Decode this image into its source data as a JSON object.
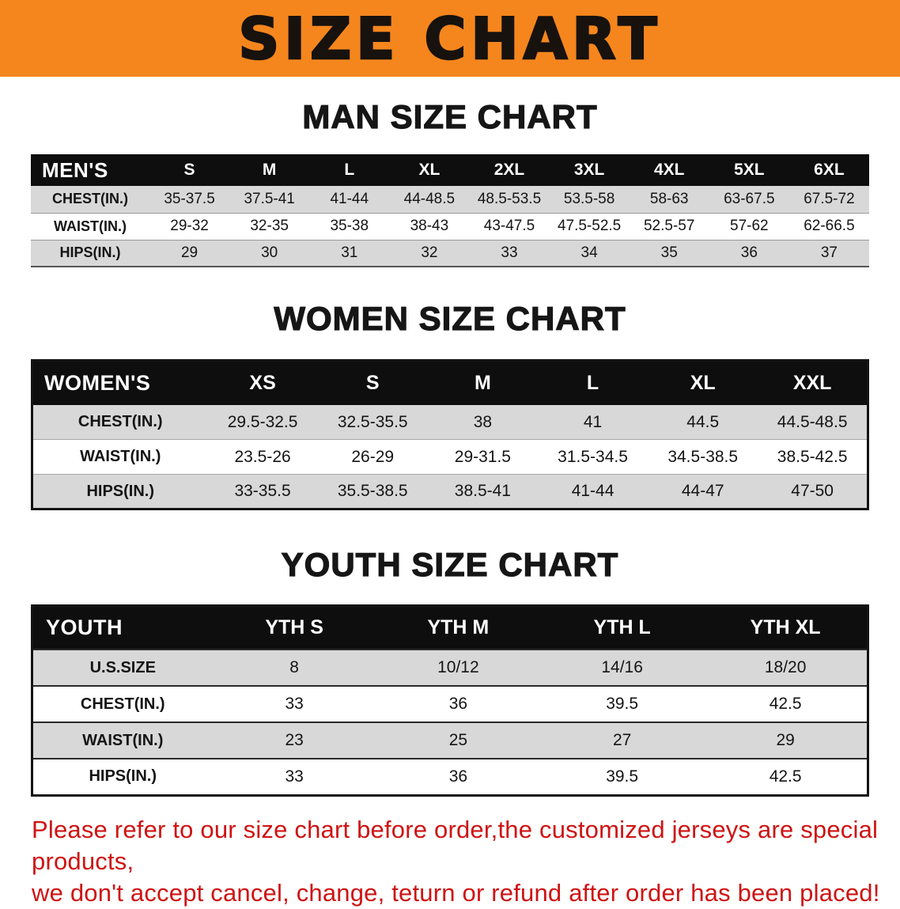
{
  "colors": {
    "banner-bg": "#f5861d",
    "table-header-bg": "#0e0e0e",
    "row-shade": "#d8d8d8",
    "footer-red": "#cf1313"
  },
  "banner": {
    "title": "SIZE CHART"
  },
  "sections": [
    {
      "heading": "MAN SIZE CHART",
      "table": {
        "header": [
          "MEN'S",
          "S",
          "M",
          "L",
          "XL",
          "2XL",
          "3XL",
          "4XL",
          "5XL",
          "6XL"
        ],
        "rows": [
          [
            "CHEST(IN.)",
            "35-37.5",
            "37.5-41",
            "41-44",
            "44-48.5",
            "48.5-53.5",
            "53.5-58",
            "58-63",
            "63-67.5",
            "67.5-72"
          ],
          [
            "WAIST(IN.)",
            "29-32",
            "32-35",
            "35-38",
            "38-43",
            "43-47.5",
            "47.5-52.5",
            "52.5-57",
            "57-62",
            "62-66.5"
          ],
          [
            "HIPS(IN.)",
            "29",
            "30",
            "31",
            "32",
            "33",
            "34",
            "35",
            "36",
            "37"
          ]
        ]
      }
    },
    {
      "heading": "WOMEN SIZE CHART",
      "table": {
        "header": [
          "WOMEN'S",
          "XS",
          "S",
          "M",
          "L",
          "XL",
          "XXL"
        ],
        "rows": [
          [
            "CHEST(IN.)",
            "29.5-32.5",
            "32.5-35.5",
            "38",
            "41",
            "44.5",
            "44.5-48.5"
          ],
          [
            "WAIST(IN.)",
            "23.5-26",
            "26-29",
            "29-31.5",
            "31.5-34.5",
            "34.5-38.5",
            "38.5-42.5"
          ],
          [
            "HIPS(IN.)",
            "33-35.5",
            "35.5-38.5",
            "38.5-41",
            "41-44",
            "44-47",
            "47-50"
          ]
        ]
      }
    },
    {
      "heading": "YOUTH SIZE CHART",
      "table": {
        "header": [
          "YOUTH",
          "YTH S",
          "YTH M",
          "YTH L",
          "YTH XL"
        ],
        "rows": [
          [
            "U.S.SIZE",
            "8",
            "10/12",
            "14/16",
            "18/20"
          ],
          [
            "CHEST(IN.)",
            "33",
            "36",
            "39.5",
            "42.5"
          ],
          [
            "WAIST(IN.)",
            "23",
            "25",
            "27",
            "29"
          ],
          [
            "HIPS(IN.)",
            "33",
            "36",
            "39.5",
            "42.5"
          ]
        ]
      }
    }
  ],
  "footer": {
    "line1": "Please refer to our size chart before order,the customized jerseys are special products,",
    "line2": "we don't accept cancel, change, teturn or refund after order has been placed!"
  }
}
